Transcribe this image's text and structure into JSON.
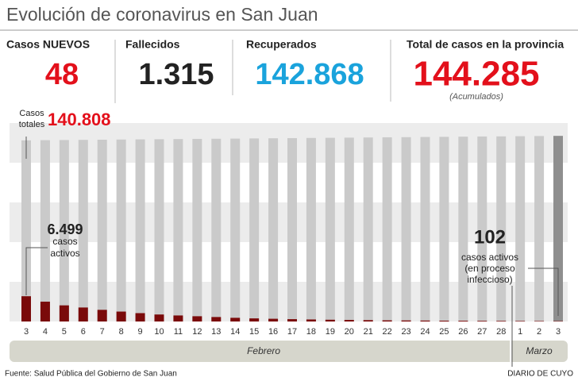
{
  "chart_data": {
    "type": "bar",
    "title": "Evolución de coronavirus en San Juan",
    "stats": [
      {
        "label": "Casos NUEVOS",
        "value": "48",
        "color": "#e3101b"
      },
      {
        "label": "Fallecidos",
        "value": "1.315",
        "color": "#222222"
      },
      {
        "label": "Recuperados",
        "value": "142.868",
        "color": "#1aa3dc"
      },
      {
        "label": "Total de casos en la provincia",
        "value": "144.285",
        "color": "#e3101b",
        "note": "(Acumulados)"
      }
    ],
    "categories": [
      "3",
      "4",
      "5",
      "6",
      "7",
      "8",
      "9",
      "10",
      "11",
      "12",
      "13",
      "14",
      "15",
      "16",
      "17",
      "18",
      "19",
      "20",
      "21",
      "22",
      "23",
      "24",
      "25",
      "26",
      "27",
      "28",
      "1",
      "2",
      "3"
    ],
    "groups": [
      {
        "label": "Febrero",
        "from": 0,
        "to": 25
      },
      {
        "label": "Marzo",
        "from": 26,
        "to": 28
      }
    ],
    "series": [
      {
        "color": "#cacaca",
        "highlight_color": "#8f8f8f",
        "values": [
          140808,
          140932,
          141056,
          141181,
          141305,
          141429,
          141553,
          141677,
          141801,
          141926,
          142050,
          142174,
          142298,
          142422,
          142546,
          142671,
          142795,
          142919,
          143043,
          143167,
          143291,
          143416,
          143540,
          143664,
          143788,
          143912,
          144036,
          144161,
          144285
        ]
      },
      {
        "color": "#7a0a0a",
        "axis": "y2",
        "values": [
          6499,
          5100,
          4150,
          3600,
          3000,
          2550,
          2150,
          1800,
          1550,
          1350,
          1150,
          950,
          800,
          700,
          600,
          520,
          450,
          400,
          350,
          300,
          270,
          240,
          210,
          190,
          170,
          150,
          130,
          115,
          102
        ]
      }
    ],
    "ylim": [
      0,
      145000
    ],
    "y2lim": [
      0,
      48000
    ],
    "annotations": {
      "total_label": [
        "Casos",
        "totales"
      ],
      "total_value": "140.808",
      "first_active": [
        "6.499",
        "casos",
        "activos"
      ],
      "last_active": [
        "102",
        "casos activos",
        "(en proceso",
        "infeccioso)"
      ]
    },
    "source": "Fuente: Salud Pública del Gobierno de San Juan",
    "credit": "DIARIO DE CUYO"
  }
}
